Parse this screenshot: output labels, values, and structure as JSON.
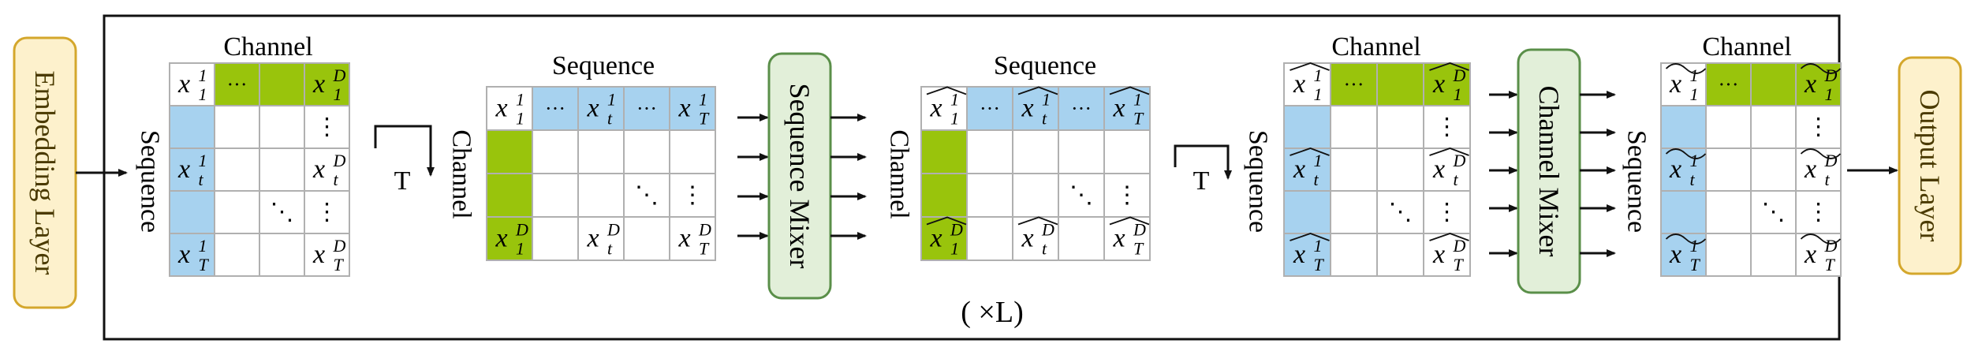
{
  "left_block": "Embedding Layer",
  "right_block": "Output Layer",
  "repeat_label": "( ×L)",
  "transpose_label": "T",
  "axis_labels": {
    "channel": "Channel",
    "sequence": "Sequence"
  },
  "sequence_mixer": "Sequence Mixer",
  "channel_mixer": "Channel Mixer",
  "glyphs": {
    "hdots": "···",
    "vdots": "⋮",
    "ddots": "⋱"
  },
  "matrices": [
    {
      "id": "input",
      "hat": "none",
      "cells": [
        "x_1^1",
        "x_1^D",
        "x_t^1",
        "x_t^D",
        "x_T^1",
        "x_T^D"
      ]
    },
    {
      "id": "transposed",
      "hat": "none",
      "cells": [
        "x_1^1",
        "x_t^1",
        "x_T^1",
        "x_1^D",
        "x_t^D",
        "x_T^D"
      ]
    },
    {
      "id": "seq-mixed",
      "hat": "hat",
      "cells": [
        "x_1^1",
        "x_t^1",
        "x_T^1",
        "x_1^D",
        "x_t^D",
        "x_T^D"
      ]
    },
    {
      "id": "seq-mixed-back",
      "hat": "hat",
      "cells": [
        "x_1^1",
        "x_1^D",
        "x_t^1",
        "x_t^D",
        "x_T^1",
        "x_T^D"
      ]
    },
    {
      "id": "output",
      "hat": "tilde",
      "cells": [
        "x_1^1",
        "x_1^D",
        "x_t^1",
        "x_t^D",
        "x_T^1",
        "x_T^D"
      ]
    }
  ],
  "colors": {
    "green_cell": "#99c40c",
    "blue_cell": "#a7d2ef",
    "side_block_fill": "#fdf1cc",
    "side_block_stroke": "#d4a72c",
    "side_block_text": "#4a3a00",
    "mixer_fill": "#e2efd9",
    "mixer_stroke": "#5a8f49",
    "grid": "#b0b0b0",
    "frame": "#111111"
  }
}
